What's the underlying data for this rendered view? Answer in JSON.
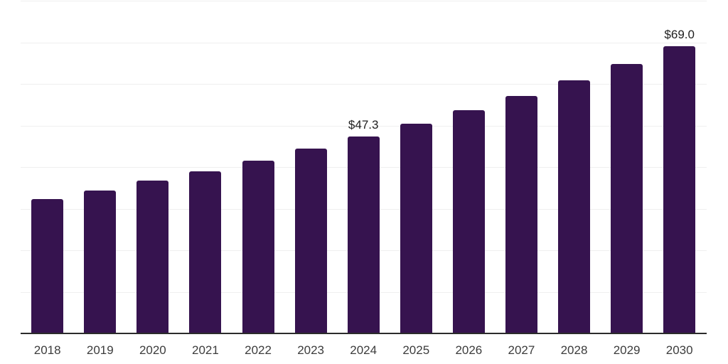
{
  "chart_data": {
    "type": "bar",
    "title": "",
    "xlabel": "",
    "ylabel": "",
    "categories": [
      "2018",
      "2019",
      "2020",
      "2021",
      "2022",
      "2023",
      "2024",
      "2025",
      "2026",
      "2027",
      "2028",
      "2029",
      "2030"
    ],
    "values": [
      32.3,
      34.4,
      36.7,
      39.0,
      41.6,
      44.4,
      47.3,
      50.4,
      53.7,
      57.1,
      60.9,
      64.8,
      69.0
    ],
    "data_labels": [
      {
        "category": "2024",
        "text": "$47.3"
      },
      {
        "category": "2030",
        "text": "$69.0"
      }
    ],
    "ylim": [
      0,
      80
    ],
    "grid": true,
    "grid_step": 10,
    "legend": "none",
    "colors": {
      "bar": "#36134F",
      "gridline": "#EFEFEF",
      "axis_line": "#2B2B2B",
      "tick_label": "#3C3C3C",
      "data_label": "#1E1E1E",
      "background": "#FFFFFF"
    }
  }
}
